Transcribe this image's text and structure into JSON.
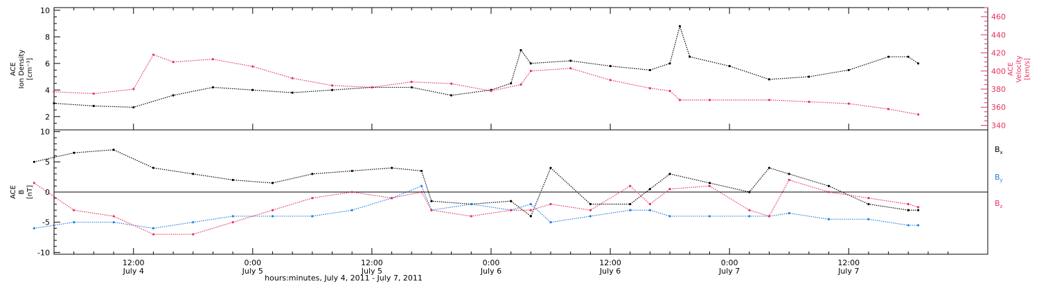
{
  "colors": {
    "black": "#000000",
    "red": "#e8315f",
    "blue": "#1e7fe0"
  },
  "chart_data": [
    {
      "type": "scatter",
      "panel": "top",
      "ylabel_lines": [
        "ACE",
        "Ion Density",
        "[cm⁻³]"
      ],
      "ylabel_right_lines": [
        "ACE",
        "Velocity",
        "[km/s]"
      ],
      "ylim": [
        1,
        10.2
      ],
      "ylim_right": [
        335,
        470
      ],
      "y_ticks": [
        "2",
        "4",
        "6",
        "8",
        "10"
      ],
      "y_ticks_right": [
        "340",
        "360",
        "380",
        "400",
        "420",
        "440",
        "460"
      ],
      "series": [
        {
          "color": "black",
          "axis": "left",
          "x_hours": [
            4,
            8,
            12,
            16,
            20,
            24,
            28,
            32,
            36,
            40,
            44,
            48,
            50,
            51,
            52,
            56,
            60,
            64,
            66,
            67,
            68,
            72,
            76,
            80,
            84,
            88,
            90,
            91
          ],
          "y": [
            3.0,
            2.8,
            2.7,
            3.6,
            4.2,
            4.0,
            3.8,
            4.0,
            4.2,
            4.2,
            3.6,
            4.0,
            4.5,
            7.0,
            6.0,
            6.2,
            5.8,
            5.5,
            6.0,
            8.8,
            6.5,
            5.8,
            4.8,
            5.0,
            5.5,
            6.5,
            6.5,
            6.0
          ]
        },
        {
          "color": "red",
          "axis": "right",
          "x_hours": [
            4,
            8,
            12,
            14,
            16,
            20,
            24,
            28,
            32,
            36,
            40,
            44,
            48,
            51,
            52,
            56,
            60,
            64,
            66,
            67,
            70,
            76,
            80,
            84,
            88,
            91
          ],
          "y": [
            377,
            375,
            380,
            418,
            410,
            413,
            405,
            392,
            384,
            382,
            388,
            386,
            378,
            385,
            400,
            403,
            390,
            381,
            378,
            368,
            368,
            368,
            366,
            364,
            358,
            352
          ]
        }
      ]
    },
    {
      "type": "scatter",
      "panel": "bottom",
      "ylabel_lines": [
        "ACE",
        "B",
        "[nT]"
      ],
      "ylim": [
        -10.3,
        10.3
      ],
      "y_ticks": [
        "-10",
        "-5",
        "0",
        "5",
        "10"
      ],
      "series": [
        {
          "name": "Bx",
          "color": "black",
          "x_hours": [
            2,
            6,
            10,
            14,
            18,
            22,
            26,
            30,
            34,
            38,
            41,
            42,
            46,
            50,
            52,
            54,
            58,
            62,
            64,
            66,
            70,
            74,
            76,
            78,
            82,
            86,
            90,
            91
          ],
          "y": [
            5,
            6.5,
            7,
            4,
            3,
            2,
            1.5,
            3,
            3.5,
            4,
            3.5,
            -1.5,
            -2,
            -1.5,
            -4,
            4,
            -2,
            -2,
            0.5,
            3,
            1.5,
            0,
            4,
            3,
            1,
            -2,
            -3,
            -3
          ]
        },
        {
          "name": "By",
          "color": "blue",
          "x_hours": [
            2,
            6,
            10,
            14,
            18,
            22,
            26,
            30,
            34,
            38,
            41,
            42,
            46,
            50,
            52,
            54,
            58,
            62,
            64,
            66,
            70,
            74,
            76,
            78,
            82,
            86,
            90,
            91
          ],
          "y": [
            -6,
            -5,
            -5,
            -6,
            -5,
            -4,
            -4,
            -4,
            -3,
            -1,
            1,
            -3,
            -2,
            -3,
            -2,
            -5,
            -4,
            -3,
            -3,
            -4,
            -4,
            -4,
            -4,
            -3.5,
            -4.5,
            -4.5,
            -5.5,
            -5.5
          ]
        },
        {
          "name": "Bz",
          "color": "red",
          "x_hours": [
            2,
            6,
            10,
            14,
            18,
            22,
            26,
            30,
            34,
            38,
            41,
            42,
            46,
            50,
            52,
            54,
            58,
            62,
            64,
            66,
            70,
            74,
            76,
            78,
            82,
            86,
            90,
            91
          ],
          "y": [
            1.5,
            -3,
            -4,
            -7,
            -7,
            -5,
            -3,
            -1,
            0,
            -1,
            0,
            -3,
            -4,
            -3,
            -3,
            -2,
            -3,
            1,
            -2,
            0.5,
            1,
            -3,
            -4,
            2,
            0,
            -1,
            -2,
            -2.5
          ]
        }
      ],
      "legend": [
        {
          "label": "B",
          "sub": "x",
          "color": "black"
        },
        {
          "label": "B",
          "sub": "y",
          "color": "blue"
        },
        {
          "label": "B",
          "sub": "z",
          "color": "red"
        }
      ]
    }
  ],
  "x_axis": {
    "title": "hours:minutes, July  4, 2011 - July  7, 2011",
    "range_hours": [
      4,
      98
    ],
    "ticks": [
      {
        "hour": 12,
        "time": "12:00",
        "date": "July 4"
      },
      {
        "hour": 24,
        "time": "0:00",
        "date": "July 5"
      },
      {
        "hour": 36,
        "time": "12:00",
        "date": "July 5"
      },
      {
        "hour": 48,
        "time": "0:00",
        "date": "July 6"
      },
      {
        "hour": 60,
        "time": "12:00",
        "date": "July 6"
      },
      {
        "hour": 72,
        "time": "0:00",
        "date": "July 7"
      },
      {
        "hour": 84,
        "time": "12:00",
        "date": "July 7"
      }
    ]
  }
}
